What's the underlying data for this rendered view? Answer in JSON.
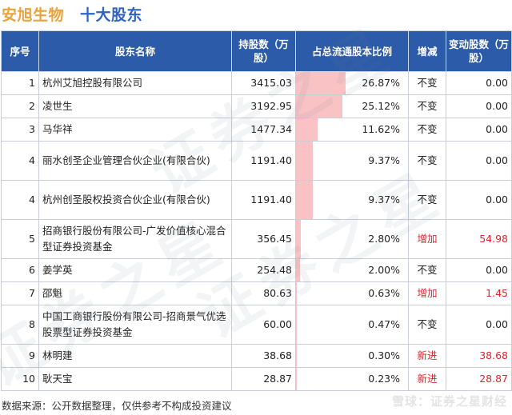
{
  "title": {
    "company": "安旭生物",
    "subtitle": "十大股东"
  },
  "columns": {
    "rank": "序号",
    "name": "股东名称",
    "shares": "持股数（万股）",
    "ratio": "占总流通股本比例",
    "change": "增减",
    "change_shares": "变动股数（万股）"
  },
  "rows": [
    {
      "rank": "1",
      "name": "杭州艾旭控股有限公司",
      "shares": "3415.03",
      "ratio": "26.87%",
      "ratio_value": 26.87,
      "change": "不变",
      "change_shares": "0.00"
    },
    {
      "rank": "2",
      "name": "凌世生",
      "shares": "3192.95",
      "ratio": "25.12%",
      "ratio_value": 25.12,
      "change": "不变",
      "change_shares": "0.00"
    },
    {
      "rank": "3",
      "name": "马华祥",
      "shares": "1477.34",
      "ratio": "11.62%",
      "ratio_value": 11.62,
      "change": "不变",
      "change_shares": "0.00"
    },
    {
      "rank": "4",
      "name": "丽水创圣企业管理合伙企业(有限合伙)",
      "shares": "1191.40",
      "ratio": "9.37%",
      "ratio_value": 9.37,
      "change": "不变",
      "change_shares": "0.00"
    },
    {
      "rank": "4",
      "name": "杭州创圣股权投资合伙企业(有限合伙)",
      "shares": "1191.40",
      "ratio": "9.37%",
      "ratio_value": 9.37,
      "change": "不变",
      "change_shares": "0.00"
    },
    {
      "rank": "5",
      "name": "招商银行股份有限公司-广发价值核心混合型证券投资基金",
      "shares": "356.45",
      "ratio": "2.80%",
      "ratio_value": 2.8,
      "change": "增加",
      "change_shares": "54.98"
    },
    {
      "rank": "6",
      "name": "姜学英",
      "shares": "254.48",
      "ratio": "2.00%",
      "ratio_value": 2.0,
      "change": "不变",
      "change_shares": "0.00"
    },
    {
      "rank": "7",
      "name": "邵魁",
      "shares": "80.63",
      "ratio": "0.63%",
      "ratio_value": 0.63,
      "change": "增加",
      "change_shares": "1.45"
    },
    {
      "rank": "8",
      "name": "中国工商银行股份有限公司-招商景气优选股票型证券投资基金",
      "shares": "60.00",
      "ratio": "0.47%",
      "ratio_value": 0.47,
      "change": "不变",
      "change_shares": "0.00"
    },
    {
      "rank": "9",
      "name": "林明建",
      "shares": "38.68",
      "ratio": "0.30%",
      "ratio_value": 0.3,
      "change": "新进",
      "change_shares": "38.68"
    },
    {
      "rank": "10",
      "name": "耿天宝",
      "shares": "28.87",
      "ratio": "0.23%",
      "ratio_value": 0.23,
      "change": "新进",
      "change_shares": "28.87"
    }
  ],
  "footer": {
    "source": "数据来源：公开数据整理，仅供参考不构成投资建议"
  },
  "watermark": {
    "stamp": "雪球：证券之星财经",
    "pattern": "证券之星"
  },
  "colors": {
    "header_bg": "#2c5ba9",
    "company_title": "#e8a33c",
    "subtitle": "#2e63c4",
    "bar": "#f9c2c4",
    "increase_text": "#e2232b"
  }
}
